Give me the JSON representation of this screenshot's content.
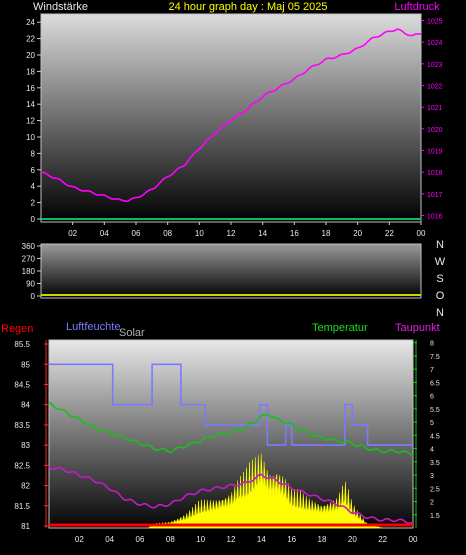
{
  "header": {
    "left_label": "Windstärke",
    "title": "24 hour graph day : Maj 05 2025",
    "right_label": "Luftdruck"
  },
  "colors": {
    "background": "#000000",
    "wind": "#00c060",
    "pressure": "#ff00ff",
    "humidity": "#7a7aff",
    "temperature": "#18c018",
    "dewpoint": "#c818c8",
    "solar": "#ffff00",
    "rain": "#ff0000",
    "tick_text": "#e8e8e8",
    "title_text": "#ffff00"
  },
  "x_ticks": [
    "02",
    "04",
    "06",
    "08",
    "10",
    "12",
    "14",
    "16",
    "18",
    "20",
    "22",
    "00"
  ],
  "panel3_labels": {
    "rain": "Regen",
    "humidity": "Luftfeuchte",
    "solar": "Solar",
    "temperature": "Temperatur",
    "dewpoint": "Taupunkt"
  },
  "chart_data": [
    {
      "type": "line",
      "title": "24 hour graph day : Maj 05 2025",
      "x_range_hours": [
        0,
        24
      ],
      "x_ticks": [
        "02",
        "04",
        "06",
        "08",
        "10",
        "12",
        "14",
        "16",
        "18",
        "20",
        "22",
        "00"
      ],
      "left_axis": {
        "label": "Windstärke",
        "ticks": [
          0,
          2,
          4,
          6,
          8,
          10,
          12,
          14,
          16,
          18,
          20,
          22,
          24
        ],
        "ylim": [
          0,
          25
        ]
      },
      "right_axis": {
        "label": "Luftdruck",
        "ticks": [
          1016,
          1017,
          1018,
          1019,
          1020,
          1021,
          1022,
          1023,
          1024,
          1025
        ],
        "ylim": [
          1015.7,
          1025.3
        ]
      },
      "series": [
        {
          "name": "Windstärke",
          "axis": "left",
          "x": [
            0,
            24
          ],
          "y": [
            0,
            0
          ]
        },
        {
          "name": "Luftdruck",
          "axis": "right",
          "x": [
            0,
            1,
            2,
            3,
            3.5,
            4,
            4.5,
            5,
            5.5,
            6,
            7,
            8,
            9,
            10,
            11,
            12,
            13,
            14,
            15,
            16,
            17,
            18,
            19,
            20,
            21,
            22,
            22.5,
            23,
            23.5,
            24
          ],
          "y": [
            1018.0,
            1017.7,
            1017.3,
            1017.1,
            1017.0,
            1016.9,
            1016.8,
            1016.7,
            1016.7,
            1016.8,
            1017.2,
            1017.8,
            1018.3,
            1019.1,
            1019.8,
            1020.4,
            1020.9,
            1021.5,
            1021.9,
            1022.3,
            1022.8,
            1023.2,
            1023.4,
            1023.7,
            1024.2,
            1024.5,
            1024.6,
            1024.4,
            1024.3,
            1024.4
          ]
        }
      ]
    },
    {
      "type": "line",
      "x_range_hours": [
        0,
        24
      ],
      "left_axis": {
        "ticks": [
          0,
          90,
          180,
          270,
          360
        ],
        "ylim": [
          0,
          360
        ]
      },
      "right_axis_labels": [
        "N",
        "W",
        "S",
        "O",
        "N"
      ],
      "series": [
        {
          "name": "Windrichtung",
          "x": [
            0,
            24
          ],
          "y": [
            0,
            0
          ]
        }
      ]
    },
    {
      "type": "area",
      "x_range_hours": [
        0,
        24
      ],
      "left_axis": {
        "ticks": [
          81,
          81.5,
          82,
          82.5,
          83,
          83.5,
          84,
          84.5,
          85,
          85.5
        ],
        "ylim": [
          80.95,
          85.6
        ]
      },
      "right_axis": {
        "ticks": [
          1.5,
          2,
          2.5,
          3,
          3.5,
          4,
          4.5,
          5,
          5.5,
          6,
          6.5,
          7,
          7.5,
          8
        ],
        "ylim": [
          1.0,
          8.1
        ]
      },
      "series": [
        {
          "name": "Regen",
          "x": [
            0,
            24
          ],
          "y": [
            81.0,
            81.0
          ]
        },
        {
          "name": "Luftfeuchte",
          "axis": "left",
          "x": [
            0,
            4.2,
            4.2,
            6.8,
            6.8,
            8.7,
            8.7,
            10.3,
            10.3,
            13.9,
            13.9,
            14.4,
            14.4,
            15.6,
            15.6,
            16.0,
            16.0,
            19.5,
            19.5,
            20.0,
            20.0,
            21.0,
            21.0,
            24
          ],
          "y": [
            85.0,
            85.0,
            84.0,
            84.0,
            85.0,
            85.0,
            84.0,
            84.0,
            83.5,
            83.5,
            84.0,
            84.0,
            83.0,
            83.0,
            83.5,
            83.5,
            83.0,
            83.0,
            84.0,
            84.0,
            83.5,
            83.5,
            83.0,
            83.0
          ]
        },
        {
          "name": "Temperatur",
          "axis": "right",
          "x": [
            0,
            1,
            2,
            3,
            4,
            5,
            6,
            7,
            8,
            9,
            10,
            11,
            12,
            13,
            14,
            14.5,
            15,
            16,
            17,
            18,
            19,
            20,
            21,
            22,
            23,
            24
          ],
          "y": [
            5.7,
            5.4,
            5.1,
            4.8,
            4.6,
            4.4,
            4.2,
            4.0,
            3.9,
            4.1,
            4.3,
            4.5,
            4.6,
            4.8,
            5.2,
            5.3,
            5.1,
            4.9,
            4.6,
            4.4,
            4.3,
            4.2,
            4.0,
            3.9,
            3.9,
            3.8
          ]
        },
        {
          "name": "Taupunkt",
          "axis": "right",
          "x": [
            0,
            1,
            2,
            3,
            4,
            5,
            6,
            7,
            8,
            9,
            10,
            11,
            12,
            13,
            14,
            15,
            16,
            17,
            18,
            19,
            20,
            21,
            22,
            23,
            24
          ],
          "y": [
            3.3,
            3.2,
            3.0,
            2.8,
            2.5,
            2.1,
            1.9,
            1.8,
            1.9,
            2.2,
            2.4,
            2.5,
            2.6,
            2.7,
            3.0,
            2.8,
            2.5,
            2.3,
            2.1,
            1.9,
            1.6,
            1.4,
            1.3,
            1.3,
            1.2
          ]
        },
        {
          "name": "Solar",
          "axis": "right",
          "x": [
            6.5,
            7,
            8,
            9,
            10,
            11,
            12,
            12.5,
            13,
            13.5,
            14,
            14.5,
            15,
            15.5,
            16,
            17,
            18,
            19,
            19.5,
            20,
            21,
            22
          ],
          "y": [
            1.0,
            1.2,
            1.3,
            1.6,
            2.1,
            2.3,
            2.6,
            3.1,
            3.3,
            3.8,
            4.3,
            3.6,
            3.7,
            3.3,
            2.6,
            2.3,
            2.1,
            2.3,
            2.9,
            2.0,
            1.2,
            1.0
          ]
        }
      ]
    }
  ]
}
